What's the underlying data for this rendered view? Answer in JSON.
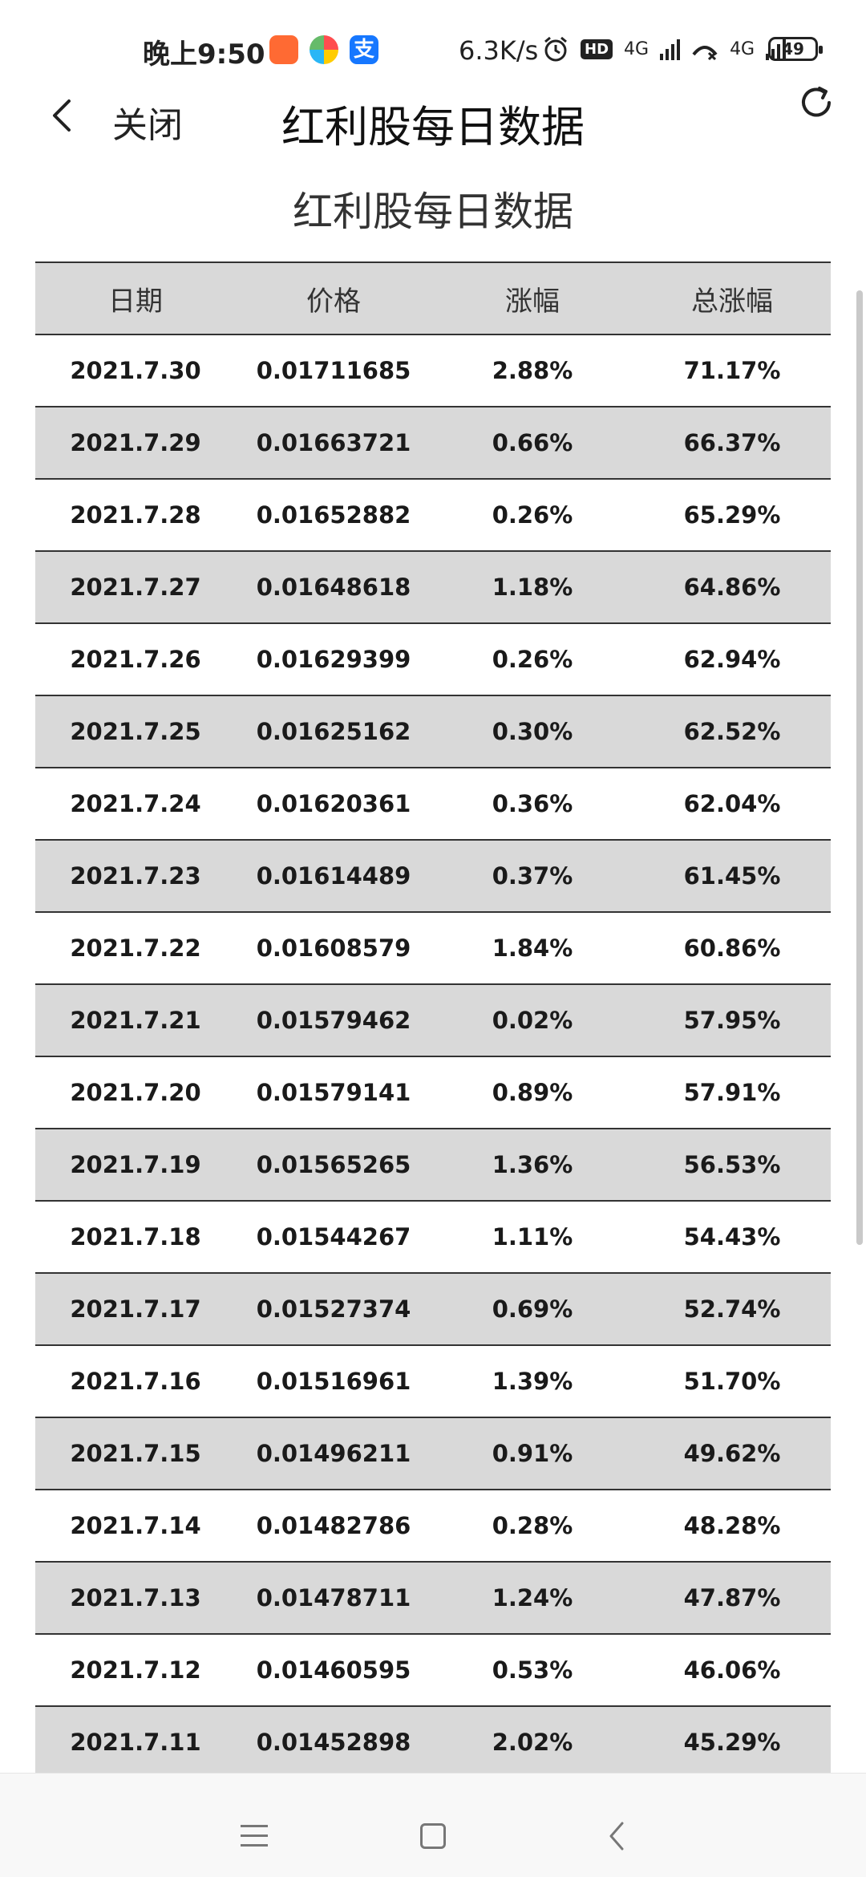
{
  "status_bar": {
    "time": "晚上9:50",
    "net_speed": "6.3K/s",
    "hd": "HD",
    "network_1": "4G",
    "network_2": "4G",
    "battery": "49",
    "icons": [
      "xiaomi-store-icon",
      "pinwheel-app-icon",
      "alipay-icon",
      "alarm-icon",
      "missed-call-icon"
    ]
  },
  "nav": {
    "close_label": "关闭",
    "title": "红利股每日数据"
  },
  "page": {
    "heading": "红利股每日数据"
  },
  "table": {
    "headers": [
      "日期",
      "价格",
      "涨幅",
      "总涨幅"
    ],
    "rows": [
      [
        "2021.7.30",
        "0.01711685",
        "2.88%",
        "71.17%"
      ],
      [
        "2021.7.29",
        "0.01663721",
        "0.66%",
        "66.37%"
      ],
      [
        "2021.7.28",
        "0.01652882",
        "0.26%",
        "65.29%"
      ],
      [
        "2021.7.27",
        "0.01648618",
        "1.18%",
        "64.86%"
      ],
      [
        "2021.7.26",
        "0.01629399",
        "0.26%",
        "62.94%"
      ],
      [
        "2021.7.25",
        "0.01625162",
        "0.30%",
        "62.52%"
      ],
      [
        "2021.7.24",
        "0.01620361",
        "0.36%",
        "62.04%"
      ],
      [
        "2021.7.23",
        "0.01614489",
        "0.37%",
        "61.45%"
      ],
      [
        "2021.7.22",
        "0.01608579",
        "1.84%",
        "60.86%"
      ],
      [
        "2021.7.21",
        "0.01579462",
        "0.02%",
        "57.95%"
      ],
      [
        "2021.7.20",
        "0.01579141",
        "0.89%",
        "57.91%"
      ],
      [
        "2021.7.19",
        "0.01565265",
        "1.36%",
        "56.53%"
      ],
      [
        "2021.7.18",
        "0.01544267",
        "1.11%",
        "54.43%"
      ],
      [
        "2021.7.17",
        "0.01527374",
        "0.69%",
        "52.74%"
      ],
      [
        "2021.7.16",
        "0.01516961",
        "1.39%",
        "51.70%"
      ],
      [
        "2021.7.15",
        "0.01496211",
        "0.91%",
        "49.62%"
      ],
      [
        "2021.7.14",
        "0.01482786",
        "0.28%",
        "48.28%"
      ],
      [
        "2021.7.13",
        "0.01478711",
        "1.24%",
        "47.87%"
      ],
      [
        "2021.7.12",
        "0.01460595",
        "0.53%",
        "46.06%"
      ],
      [
        "2021.7.11",
        "0.01452898",
        "2.02%",
        "45.29%"
      ]
    ]
  }
}
